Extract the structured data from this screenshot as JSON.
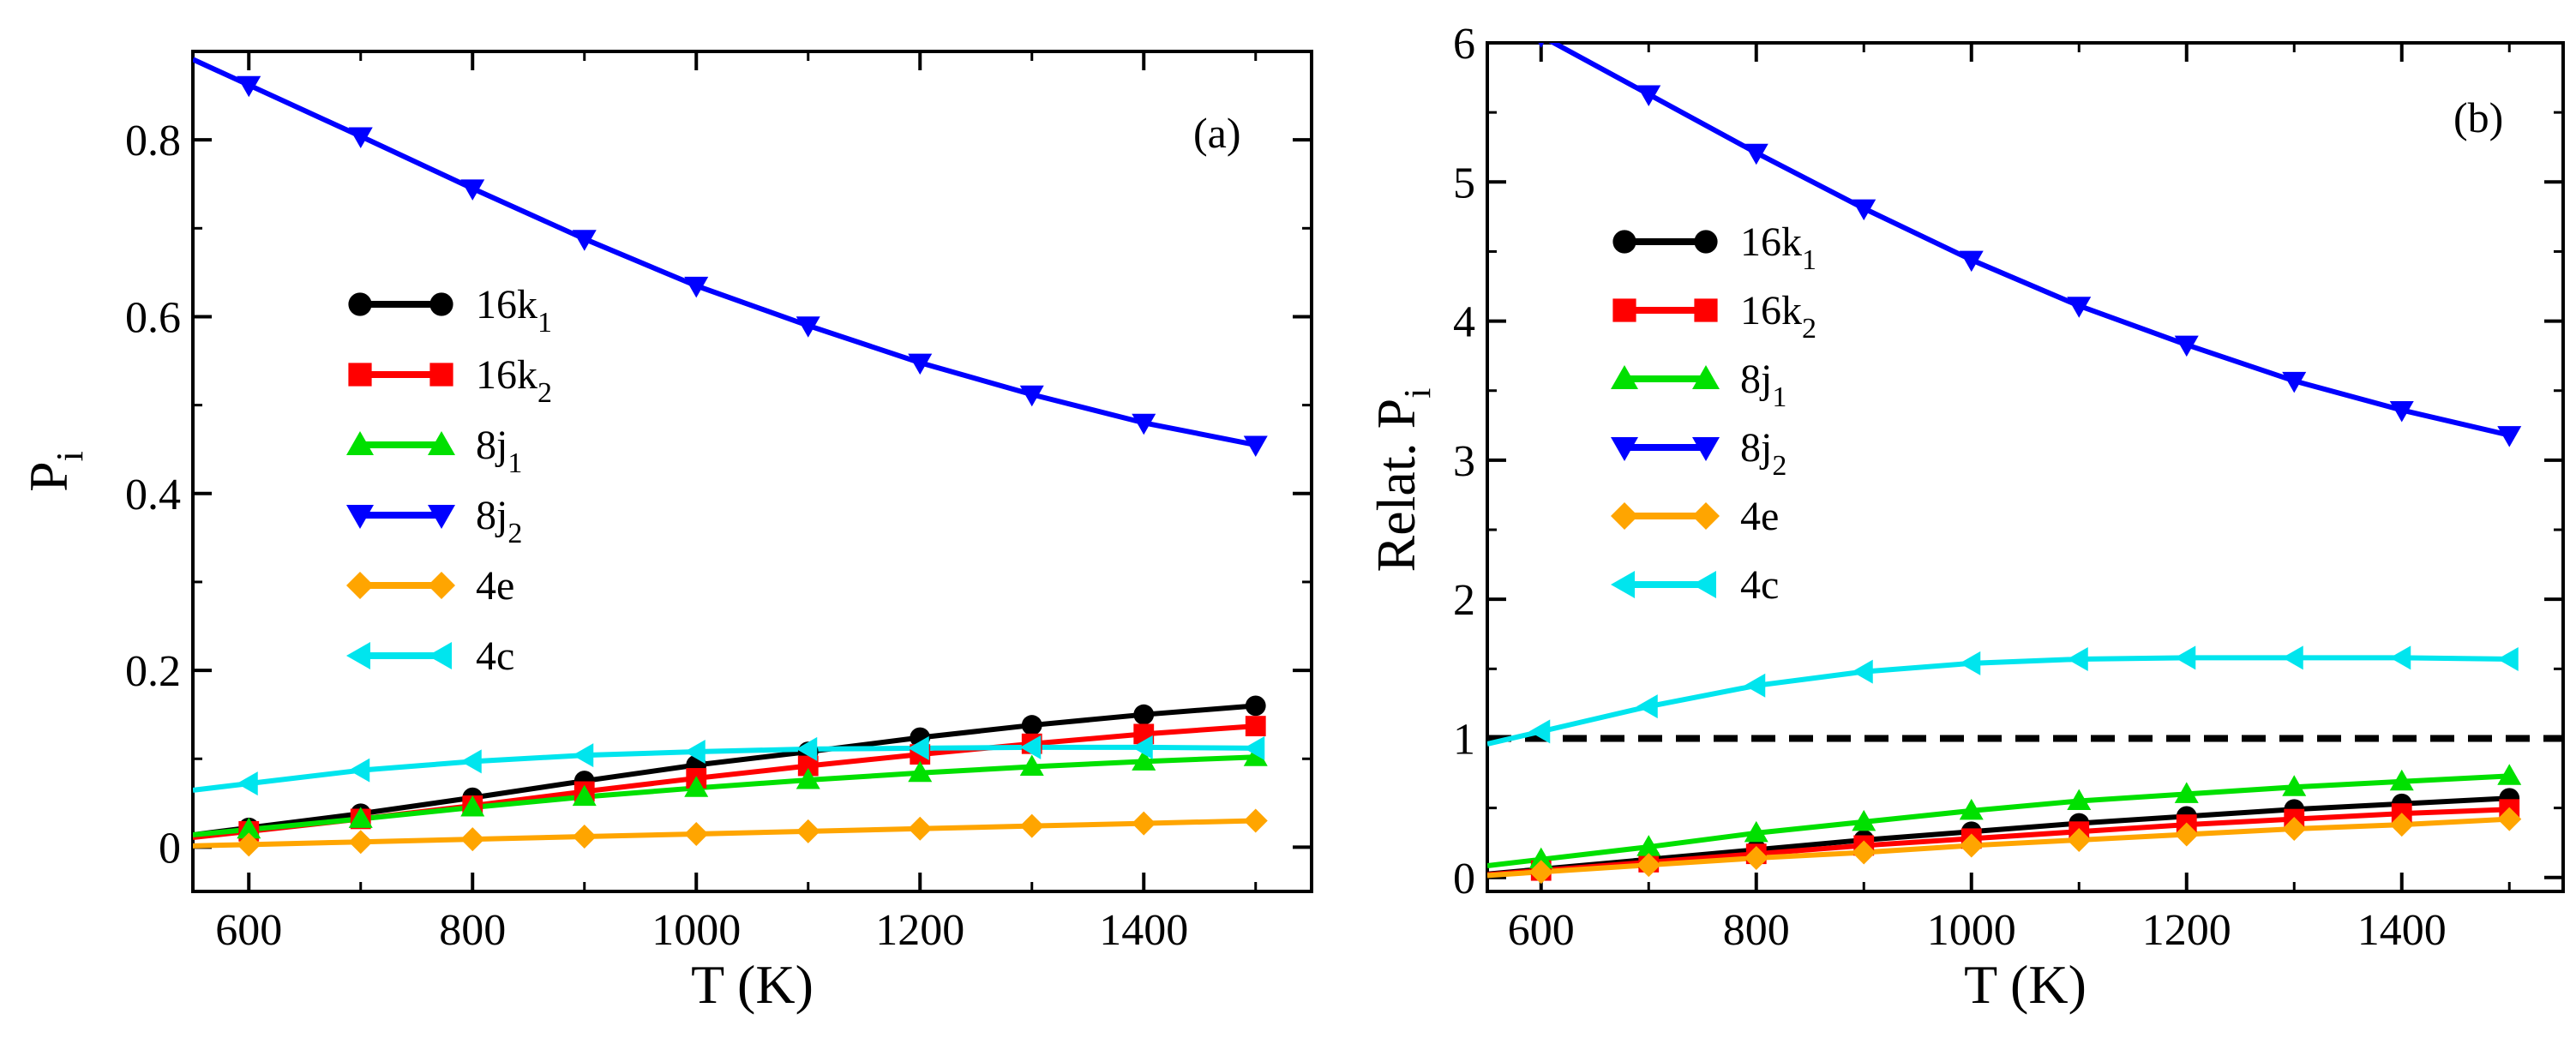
{
  "chart_data": [
    {
      "id": "a",
      "type": "line",
      "panel_label": "(a)",
      "xlabel": "T (K)",
      "ylabel": {
        "main": "P",
        "sub": "i"
      },
      "xlim": [
        550,
        1550
      ],
      "ylim": [
        -0.05,
        0.9
      ],
      "xticks": [
        600,
        800,
        1000,
        1200,
        1400
      ],
      "xtick_labels": [
        "600",
        "800",
        "1000",
        "1200",
        "1400"
      ],
      "yticks": [
        0,
        0.2,
        0.4,
        0.6,
        0.8
      ],
      "ytick_labels": [
        "0",
        "0.2",
        "0.4",
        "0.6",
        "0.8"
      ],
      "reference_line": null,
      "legend_position": "center-left",
      "x": [
        600,
        700,
        800,
        900,
        1000,
        1100,
        1200,
        1300,
        1400,
        1500
      ],
      "series": [
        {
          "name": "16k1",
          "label_main": "16k",
          "label_sub": "1",
          "color": "#000000",
          "marker": "circle",
          "values": [
            0.022,
            0.038,
            0.056,
            0.075,
            0.093,
            0.108,
            0.124,
            0.138,
            0.15,
            0.16
          ]
        },
        {
          "name": "16k2",
          "label_main": "16k",
          "label_sub": "2",
          "color": "#ff0000",
          "marker": "square",
          "values": [
            0.018,
            0.032,
            0.047,
            0.063,
            0.078,
            0.092,
            0.105,
            0.117,
            0.128,
            0.137
          ]
        },
        {
          "name": "8j1",
          "label_main": "8j",
          "label_sub": "1",
          "color": "#00e000",
          "marker": "triangle-up",
          "values": [
            0.02,
            0.032,
            0.045,
            0.057,
            0.067,
            0.076,
            0.084,
            0.091,
            0.097,
            0.102
          ]
        },
        {
          "name": "8j2",
          "label_main": "8j",
          "label_sub": "2",
          "color": "#0000ff",
          "marker": "triangle-down",
          "values": [
            0.862,
            0.804,
            0.745,
            0.688,
            0.635,
            0.59,
            0.548,
            0.512,
            0.48,
            0.455
          ]
        },
        {
          "name": "4e",
          "label_main": "4e",
          "label_sub": "",
          "color": "#ffa500",
          "marker": "diamond",
          "values": [
            0.003,
            0.006,
            0.009,
            0.012,
            0.015,
            0.018,
            0.021,
            0.024,
            0.027,
            0.03
          ]
        },
        {
          "name": "4c",
          "label_main": "4c",
          "label_sub": "",
          "color": "#00e5ee",
          "marker": "triangle-left",
          "values": [
            0.072,
            0.087,
            0.097,
            0.104,
            0.108,
            0.111,
            0.112,
            0.113,
            0.113,
            0.112
          ]
        }
      ]
    },
    {
      "id": "b",
      "type": "line",
      "panel_label": "(b)",
      "xlabel": "T (K)",
      "ylabel": {
        "main": "Relat. P",
        "sub": "i"
      },
      "xlim": [
        550,
        1550
      ],
      "ylim": [
        -0.1,
        6
      ],
      "xticks": [
        600,
        800,
        1000,
        1200,
        1400
      ],
      "xtick_labels": [
        "600",
        "800",
        "1000",
        "1200",
        "1400"
      ],
      "yticks": [
        0,
        1,
        2,
        3,
        4,
        5,
        6
      ],
      "ytick_labels": [
        "0",
        "1",
        "2",
        "3",
        "4",
        "5",
        "6"
      ],
      "reference_line": {
        "y": 1,
        "style": "dashed",
        "color": "#000000"
      },
      "legend_position": "upper-left",
      "x": [
        600,
        700,
        800,
        900,
        1000,
        1100,
        1200,
        1300,
        1400,
        1500
      ],
      "series": [
        {
          "name": "16k1",
          "label_main": "16k",
          "label_sub": "1",
          "color": "#000000",
          "marker": "circle",
          "values": [
            0.06,
            0.13,
            0.2,
            0.27,
            0.33,
            0.39,
            0.44,
            0.49,
            0.53,
            0.57
          ]
        },
        {
          "name": "16k2",
          "label_main": "16k",
          "label_sub": "2",
          "color": "#ff0000",
          "marker": "square",
          "values": [
            0.05,
            0.11,
            0.17,
            0.23,
            0.28,
            0.33,
            0.38,
            0.42,
            0.46,
            0.49
          ]
        },
        {
          "name": "8j1",
          "label_main": "8j",
          "label_sub": "1",
          "color": "#00e000",
          "marker": "triangle-up",
          "values": [
            0.13,
            0.22,
            0.32,
            0.4,
            0.48,
            0.55,
            0.6,
            0.65,
            0.69,
            0.73
          ]
        },
        {
          "name": "8j2",
          "label_main": "8j",
          "label_sub": "2",
          "color": "#0000ff",
          "marker": "triangle-down",
          "values": [
            6.05,
            5.63,
            5.21,
            4.81,
            4.44,
            4.11,
            3.83,
            3.57,
            3.36,
            3.18
          ]
        },
        {
          "name": "4e",
          "label_main": "4e",
          "label_sub": "",
          "color": "#ffa500",
          "marker": "diamond",
          "values": [
            0.04,
            0.09,
            0.14,
            0.18,
            0.23,
            0.27,
            0.31,
            0.35,
            0.38,
            0.42
          ]
        },
        {
          "name": "4c",
          "label_main": "4c",
          "label_sub": "",
          "color": "#00e5ee",
          "marker": "triangle-left",
          "values": [
            1.05,
            1.23,
            1.38,
            1.48,
            1.54,
            1.57,
            1.58,
            1.58,
            1.58,
            1.57
          ]
        }
      ]
    }
  ]
}
